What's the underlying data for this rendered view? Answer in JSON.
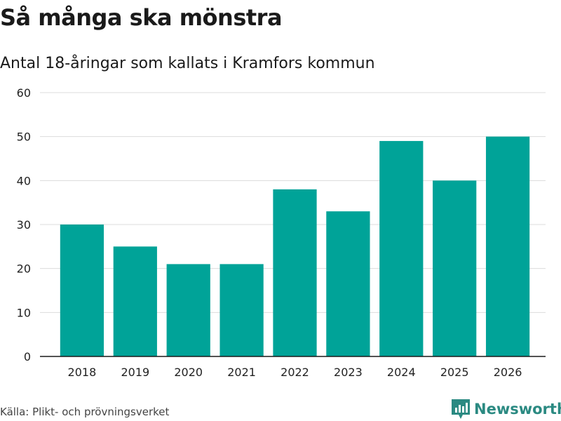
{
  "header": {
    "title": "Så många ska mönstra",
    "subtitle": "Antal 18-åringar som kallats i Kramfors kommun"
  },
  "footer": {
    "source": "Källa: Plikt- och prövningsverket",
    "brand": "Newsworthy",
    "logo_icon": "newsworthy-logo-icon"
  },
  "colors": {
    "bar": "#00a398",
    "grid": "#dcdcdc",
    "axis": "#1a1a1a",
    "brand": "#2b8a82"
  },
  "chart_data": {
    "type": "bar",
    "title": "Så många ska mönstra",
    "subtitle": "Antal 18-åringar som kallats i Kramfors kommun",
    "xlabel": "",
    "ylabel": "",
    "categories": [
      "2018",
      "2019",
      "2020",
      "2021",
      "2022",
      "2023",
      "2024",
      "2025",
      "2026"
    ],
    "values": [
      30,
      25,
      21,
      21,
      38,
      33,
      49,
      40,
      50
    ],
    "ylim": [
      0,
      60
    ],
    "yticks": [
      0,
      10,
      20,
      30,
      40,
      50,
      60
    ],
    "grid": true,
    "legend": "none"
  }
}
